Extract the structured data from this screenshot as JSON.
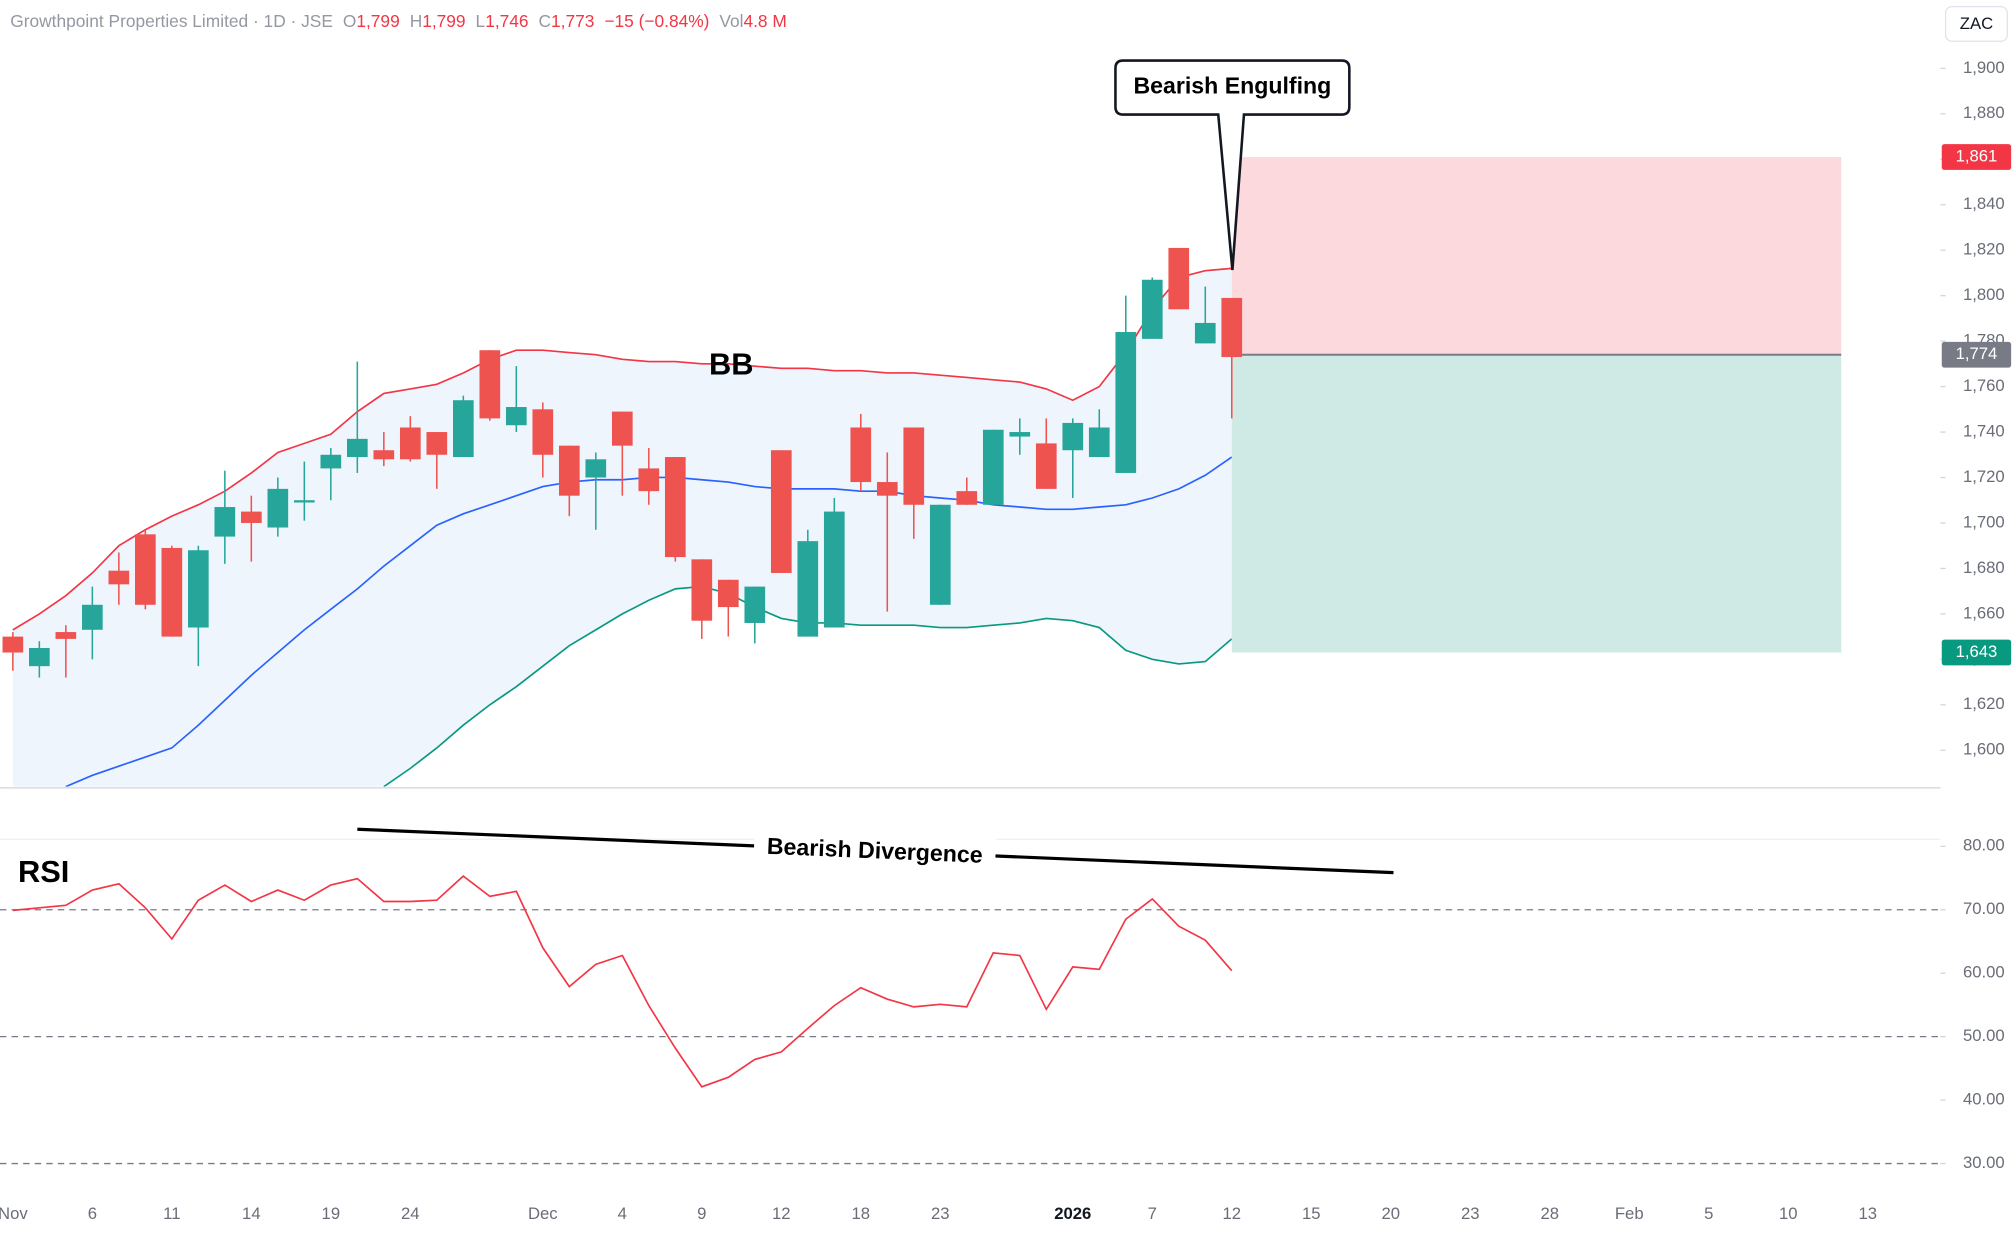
{
  "header": {
    "title": "Growthpoint Properties Limited · 1D · JSE",
    "open_label": "O",
    "open": "1,799",
    "high_label": "H",
    "high": "1,799",
    "low_label": "L",
    "low": "1,746",
    "close_label": "C",
    "close": "1,773",
    "change": "−15 (−0.84%)",
    "volume_label": "Vol",
    "volume": "4.8 M",
    "currency": "ZAC"
  },
  "chart_data": [
    {
      "type": "candlestick",
      "annotations": {
        "pattern": "Bearish Engulfing",
        "indicator": "BB"
      },
      "categories": [
        "Nov",
        null,
        null,
        "6",
        null,
        null,
        "11",
        null,
        null,
        "14",
        null,
        null,
        "19",
        null,
        null,
        "24",
        null,
        null,
        null,
        null,
        "Dec",
        null,
        null,
        "4",
        null,
        null,
        "9",
        null,
        null,
        "12",
        null,
        null,
        "18",
        null,
        null,
        "23",
        null,
        null,
        null,
        null,
        "2026",
        null,
        null,
        "7",
        null,
        null,
        "12",
        null,
        null,
        "15",
        null,
        null,
        "20",
        null,
        null,
        "23",
        null,
        null,
        "28",
        null,
        null,
        "Feb",
        null,
        null,
        "5",
        null,
        null,
        "10",
        null,
        null,
        "13",
        null
      ],
      "open": [
        1650,
        1637,
        1652,
        1653,
        1679,
        1695,
        1689,
        1654,
        1694,
        1705,
        1698,
        1709,
        1724,
        1729,
        1732,
        1742,
        1740,
        1729,
        1776,
        1743,
        1750,
        1734,
        1720,
        1749,
        1724,
        1729,
        1684,
        1675,
        1656,
        1732,
        1650,
        1654,
        1742,
        1718,
        1742,
        1664,
        1714,
        1708,
        1738,
        1735,
        1732,
        1729,
        1722,
        1781,
        1821,
        1779,
        1799,
        null,
        null,
        null,
        null,
        null,
        null,
        null,
        null,
        null,
        null,
        null,
        null,
        null,
        null,
        null,
        null,
        null,
        null,
        null,
        null,
        null,
        null,
        null,
        null,
        null
      ],
      "high": [
        1652,
        1648,
        1655,
        1672,
        1687,
        1697,
        1690,
        1690,
        1723,
        1712,
        1720,
        1727,
        1733,
        1771,
        1740,
        1747,
        1740,
        1756,
        1776,
        1769,
        1753,
        1734,
        1731,
        1749,
        1733,
        1729,
        1684,
        1675,
        1672,
        1732,
        1697,
        1711,
        1748,
        1731,
        1742,
        1708,
        1720,
        1741,
        1746,
        1746,
        1746,
        1750,
        1800,
        1808,
        1821,
        1804,
        1799,
        null,
        null,
        null,
        null,
        null,
        null,
        null,
        null,
        null,
        null,
        null,
        null,
        null,
        null,
        null,
        null,
        null,
        null,
        null,
        null,
        null,
        null,
        null,
        null,
        null
      ],
      "low": [
        1635,
        1632,
        1632,
        1640,
        1664,
        1662,
        1650,
        1637,
        1682,
        1683,
        1694,
        1701,
        1710,
        1722,
        1725,
        1727,
        1715,
        1729,
        1745,
        1740,
        1720,
        1703,
        1697,
        1712,
        1708,
        1683,
        1649,
        1650,
        1647,
        1678,
        1650,
        1654,
        1714,
        1661,
        1693,
        1664,
        1708,
        1708,
        1730,
        1715,
        1711,
        1729,
        1722,
        1781,
        1794,
        1779,
        1746,
        null,
        null,
        null,
        null,
        null,
        null,
        null,
        null,
        null,
        null,
        null,
        null,
        null,
        null,
        null,
        null,
        null,
        null,
        null,
        null,
        null,
        null,
        null,
        null,
        null
      ],
      "close": [
        1643,
        1645,
        1649,
        1664,
        1673,
        1664,
        1650,
        1688,
        1707,
        1700,
        1715,
        1710,
        1730,
        1737,
        1728,
        1728,
        1730,
        1754,
        1746,
        1751,
        1730,
        1712,
        1728,
        1734,
        1714,
        1685,
        1657,
        1663,
        1672,
        1678,
        1692,
        1705,
        1718,
        1712,
        1708,
        1708,
        1708,
        1741,
        1740,
        1715,
        1744,
        1742,
        1784,
        1807,
        1794,
        1788,
        1773,
        null,
        null,
        null,
        null,
        null,
        null,
        null,
        null,
        null,
        null,
        null,
        null,
        null,
        null,
        null,
        null,
        null,
        null,
        null,
        null,
        null,
        null,
        null,
        null,
        null
      ],
      "up_color": "#26a69a",
      "down_color": "#ef5350",
      "bollinger": {
        "fill": "#eef5fc",
        "upper": {
          "color": "#f23645",
          "values": [
            1653,
            1660,
            1668,
            1678,
            1690,
            1697,
            1703,
            1708,
            1714,
            1722,
            1731,
            1735,
            1739,
            1749,
            1757,
            1759,
            1761,
            1766,
            1772,
            1776,
            1776,
            1775,
            1774,
            1772,
            1771,
            1771,
            1770,
            1770,
            1769,
            1768,
            1768,
            1767,
            1767,
            1766,
            1766,
            1765,
            1764,
            1763,
            1762,
            1759,
            1754,
            1760,
            1775,
            1794,
            1808,
            1811,
            1812,
            null,
            null,
            null,
            null,
            null,
            null,
            null,
            null,
            null,
            null,
            null,
            null,
            null,
            null,
            null,
            null,
            null,
            null,
            null,
            null,
            null,
            null,
            null,
            null,
            null
          ]
        },
        "middle": {
          "color": "#2962ff",
          "values": [
            null,
            null,
            1584,
            1589,
            1593,
            1597,
            1601,
            1611,
            1622,
            1633,
            1643,
            1653,
            1662,
            1671,
            1681,
            1690,
            1699,
            1704,
            1708,
            1712,
            1716,
            1718,
            1719,
            1719,
            1720,
            1720,
            1719,
            1718,
            1716,
            1715,
            1715,
            1715,
            1714,
            1714,
            1712,
            1711,
            1710,
            1708,
            1707,
            1706,
            1706,
            1707,
            1708,
            1711,
            1715,
            1721,
            1729,
            null,
            null,
            null,
            null,
            null,
            null,
            null,
            null,
            null,
            null,
            null,
            null,
            null,
            null,
            null,
            null,
            null,
            null,
            null,
            null,
            null,
            null,
            null,
            null,
            null
          ]
        },
        "lower": {
          "color": "#089981",
          "values": [
            null,
            null,
            null,
            null,
            null,
            null,
            null,
            null,
            null,
            null,
            null,
            null,
            null,
            null,
            1584,
            1592,
            1601,
            1611,
            1620,
            1628,
            1637,
            1646,
            1653,
            1660,
            1666,
            1671,
            1672,
            1669,
            1663,
            1658,
            1656,
            1656,
            1655,
            1655,
            1655,
            1654,
            1654,
            1655,
            1656,
            1658,
            1657,
            1654,
            1644,
            1640,
            1638,
            1639,
            1649,
            null,
            null,
            null,
            null,
            null,
            null,
            null,
            null,
            null,
            null,
            null,
            null,
            null,
            null,
            null,
            null,
            null,
            null,
            null,
            null,
            null,
            null,
            null,
            null,
            null
          ]
        }
      },
      "position": {
        "range": [
          46,
          69
        ],
        "stop": {
          "value": 1861,
          "label": "1,861",
          "color": "#f23645",
          "fill": "#fcd9dc"
        },
        "entry": {
          "value": 1774,
          "label": "1,774",
          "color": "#787b86"
        },
        "target": {
          "value": 1643,
          "label": "1,643",
          "color": "#089981",
          "fill": "#cfeae4"
        }
      },
      "ylim": [
        1584,
        1930
      ],
      "yticks": [
        {
          "value": 1600,
          "label": "1,600"
        },
        {
          "value": 1620,
          "label": "1,620"
        },
        {
          "value": 1640,
          "label": "1,640"
        },
        {
          "value": 1660,
          "label": "1,660"
        },
        {
          "value": 1680,
          "label": "1,680"
        },
        {
          "value": 1700,
          "label": "1,700"
        },
        {
          "value": 1720,
          "label": "1,720"
        },
        {
          "value": 1740,
          "label": "1,740"
        },
        {
          "value": 1760,
          "label": "1,760"
        },
        {
          "value": 1780,
          "label": "1,780"
        },
        {
          "value": 1800,
          "label": "1,800"
        },
        {
          "value": 1820,
          "label": "1,820"
        },
        {
          "value": 1840,
          "label": "1,840"
        },
        {
          "value": 1860,
          "label": "1,860"
        },
        {
          "value": 1880,
          "label": "1,880"
        },
        {
          "value": 1900,
          "label": "1,900"
        }
      ]
    },
    {
      "type": "line",
      "title": "RSI",
      "annotation": "Bearish Divergence",
      "color": "#f23645",
      "values": [
        69.9,
        70.3,
        70.7,
        73.1,
        74.1,
        70.3,
        65.4,
        71.5,
        73.9,
        71.3,
        73.1,
        71.5,
        73.9,
        74.9,
        71.3,
        71.3,
        71.5,
        75.3,
        72.1,
        72.9,
        64.0,
        57.9,
        61.4,
        62.8,
        54.9,
        48.2,
        42.1,
        43.6,
        46.4,
        47.6,
        51.3,
        54.9,
        57.7,
        55.9,
        54.7,
        55.1,
        54.7,
        63.2,
        62.8,
        54.3,
        61.0,
        60.6,
        68.5,
        71.7,
        67.4,
        65.2,
        60.4,
        null,
        null,
        null,
        null,
        null,
        null,
        null,
        null,
        null,
        null,
        null,
        null,
        null,
        null,
        null,
        null,
        null,
        null,
        null,
        null,
        null,
        null,
        null,
        null,
        null
      ],
      "levels": [
        70,
        50,
        30
      ],
      "ylim": [
        25,
        89
      ],
      "yticks": [
        {
          "value": 30,
          "label": "30.00"
        },
        {
          "value": 40,
          "label": "40.00"
        },
        {
          "value": 50,
          "label": "50.00"
        },
        {
          "value": 60,
          "label": "60.00"
        },
        {
          "value": 70,
          "label": "70.00"
        },
        {
          "value": 80,
          "label": "80.00"
        }
      ]
    }
  ]
}
